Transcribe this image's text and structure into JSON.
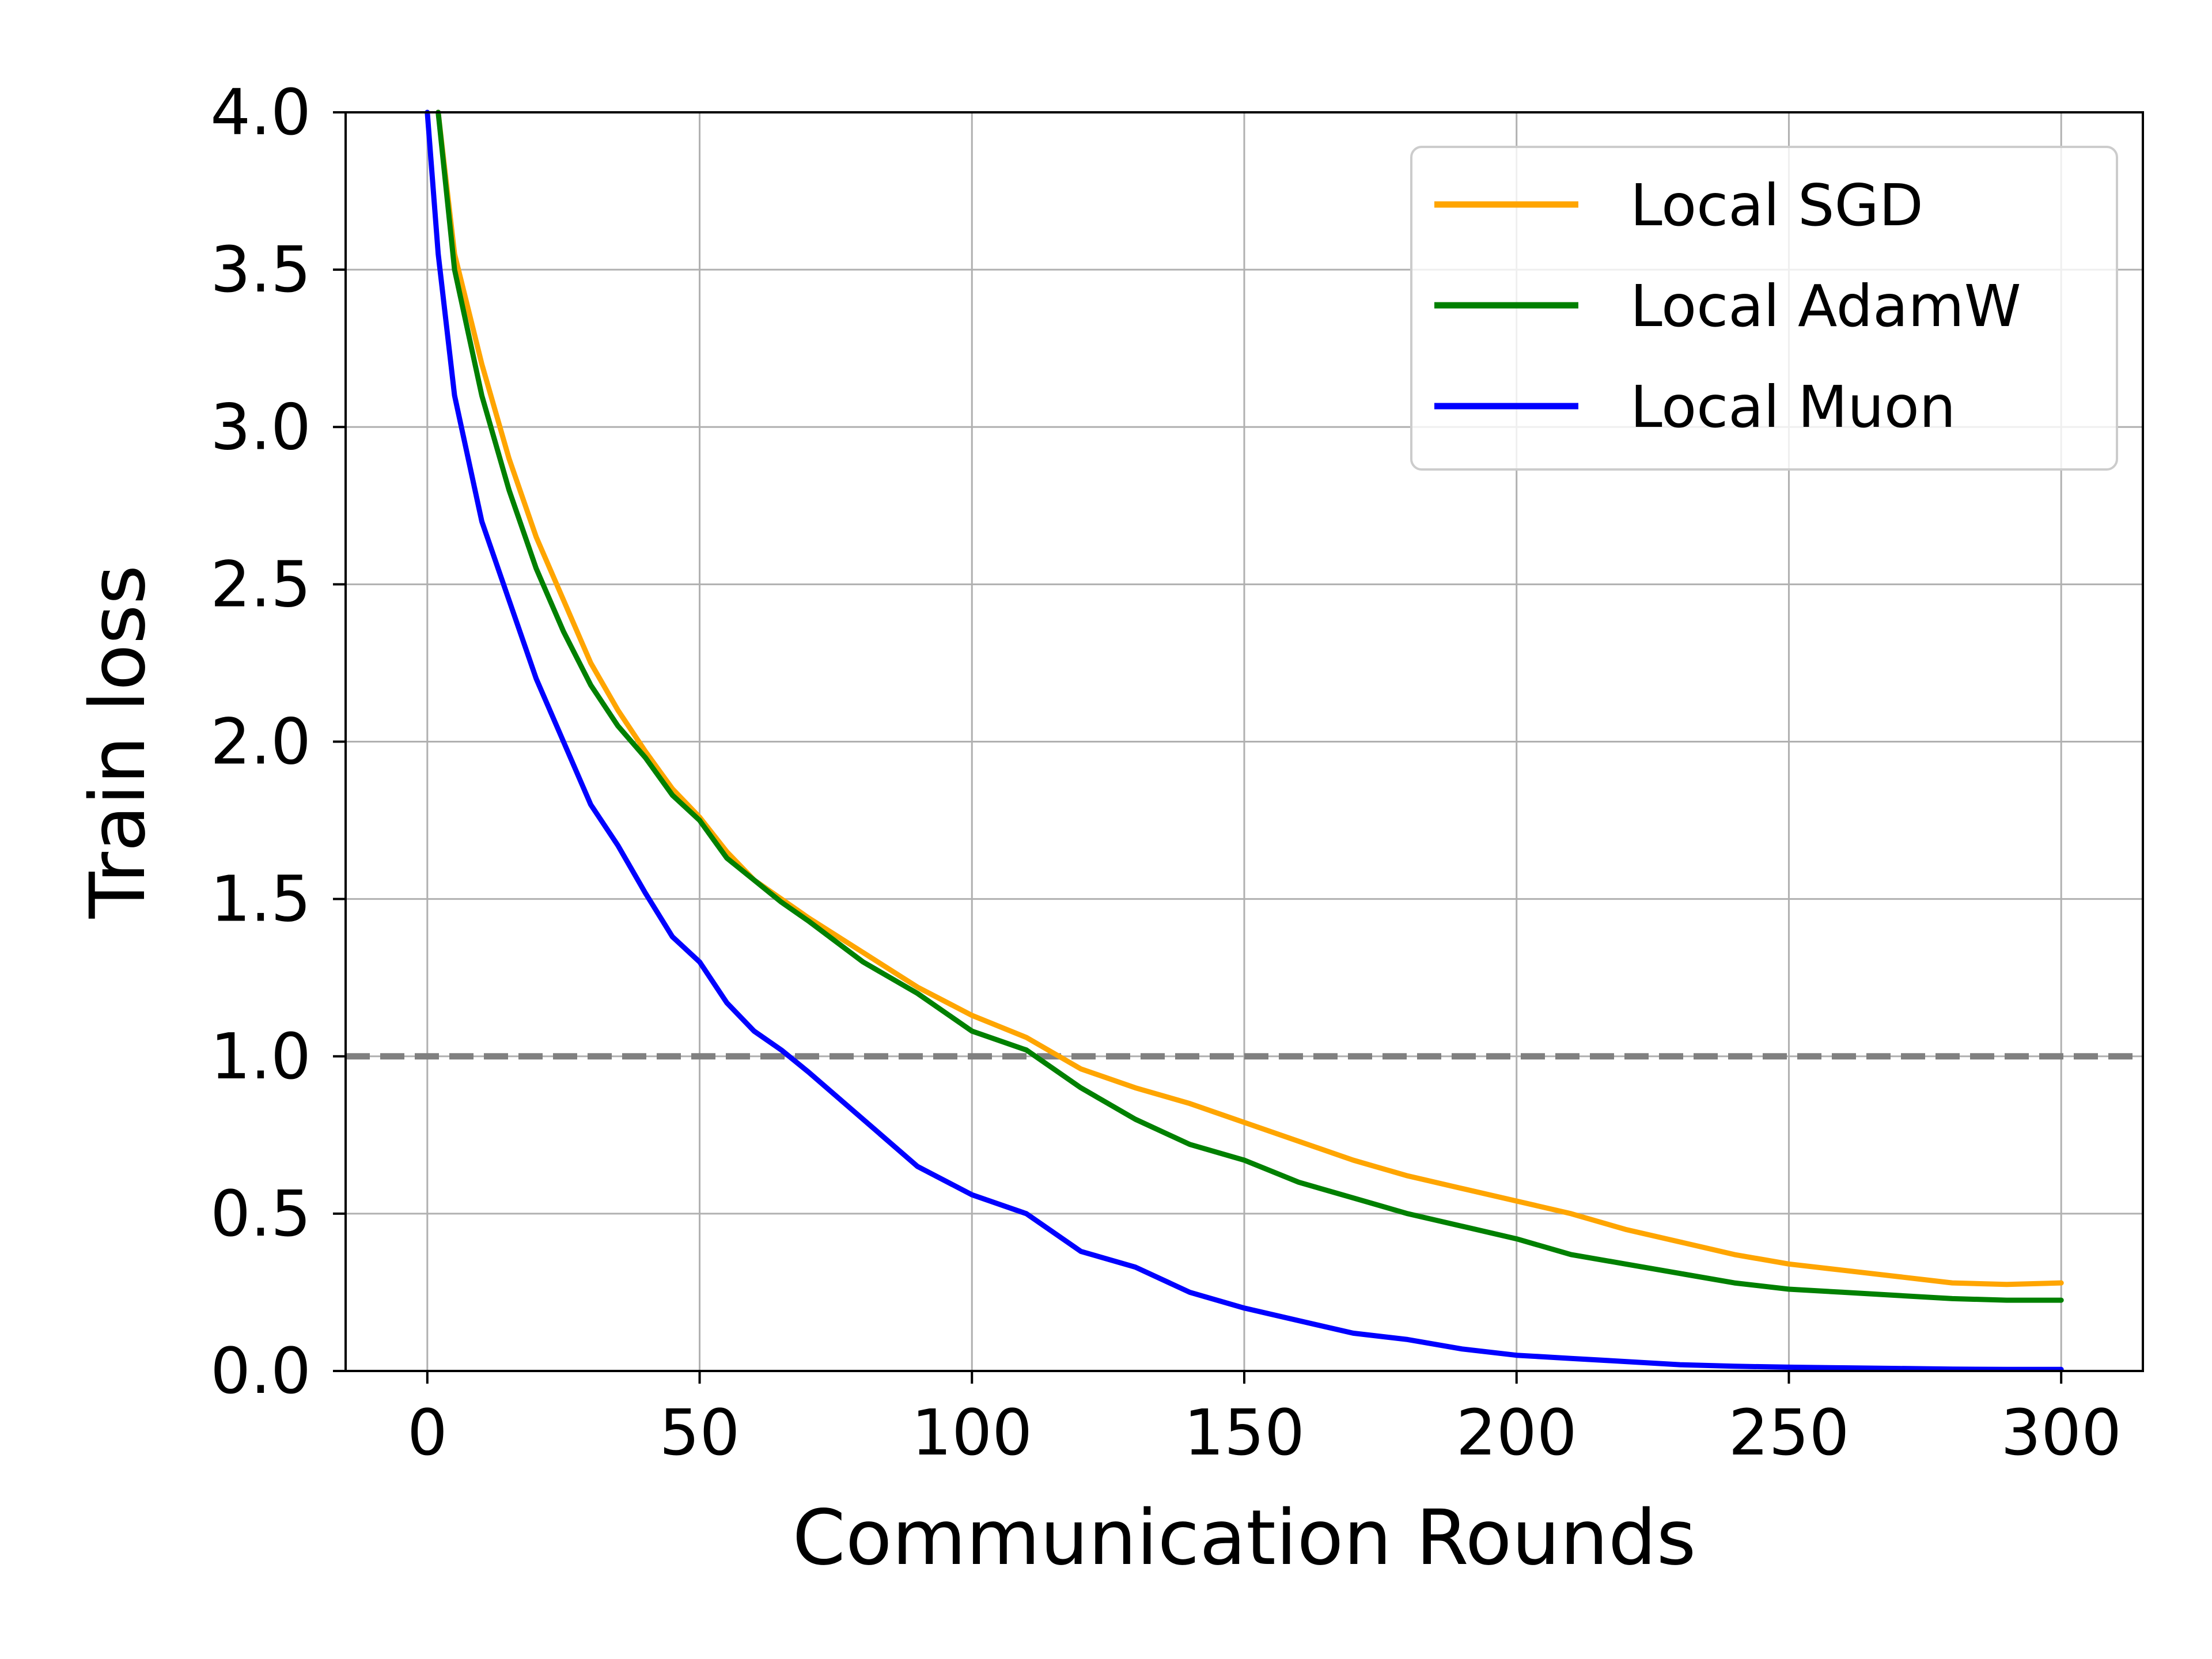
{
  "chart_data": {
    "type": "line",
    "title": "",
    "xlabel": "Communication Rounds",
    "ylabel": "Train loss",
    "xlim": [
      -15,
      315
    ],
    "ylim": [
      0,
      4
    ],
    "xticks": [
      0,
      50,
      100,
      150,
      200,
      250,
      300
    ],
    "xtick_labels": [
      "0",
      "50",
      "100",
      "150",
      "200",
      "250",
      "300"
    ],
    "yticks": [
      0,
      0.5,
      1,
      1.5,
      2,
      2.5,
      3,
      3.5,
      4
    ],
    "ytick_labels": [
      "0.0",
      "0.5",
      "1.0",
      "1.5",
      "2.0",
      "2.5",
      "3.0",
      "3.5",
      "4.0"
    ],
    "grid": true,
    "legend_position": "top-right",
    "reference_line": {
      "y": 1.0,
      "style": "dashed",
      "color": "#808080"
    },
    "series": [
      {
        "name": "Local SGD",
        "color": "#FFA500",
        "x": [
          2,
          5,
          10,
          15,
          20,
          25,
          30,
          35,
          40,
          45,
          50,
          55,
          60,
          65,
          70,
          80,
          90,
          100,
          110,
          120,
          130,
          140,
          150,
          160,
          170,
          180,
          190,
          200,
          210,
          220,
          230,
          240,
          250,
          260,
          270,
          280,
          290,
          300
        ],
        "y": [
          4.0,
          3.55,
          3.2,
          2.9,
          2.65,
          2.45,
          2.25,
          2.1,
          1.97,
          1.85,
          1.76,
          1.65,
          1.56,
          1.5,
          1.44,
          1.33,
          1.22,
          1.13,
          1.06,
          0.96,
          0.9,
          0.85,
          0.79,
          0.73,
          0.67,
          0.62,
          0.58,
          0.54,
          0.5,
          0.45,
          0.41,
          0.37,
          0.34,
          0.32,
          0.3,
          0.28,
          0.275,
          0.28
        ]
      },
      {
        "name": "Local AdamW",
        "color": "#008000",
        "x": [
          2,
          5,
          10,
          15,
          20,
          25,
          30,
          35,
          40,
          45,
          50,
          55,
          60,
          65,
          70,
          80,
          90,
          100,
          110,
          120,
          130,
          140,
          150,
          160,
          170,
          180,
          190,
          200,
          210,
          220,
          230,
          240,
          250,
          260,
          270,
          280,
          290,
          300
        ],
        "y": [
          4.0,
          3.5,
          3.1,
          2.8,
          2.55,
          2.35,
          2.18,
          2.05,
          1.95,
          1.83,
          1.75,
          1.63,
          1.56,
          1.49,
          1.43,
          1.3,
          1.2,
          1.08,
          1.02,
          0.9,
          0.8,
          0.72,
          0.67,
          0.6,
          0.55,
          0.5,
          0.46,
          0.42,
          0.37,
          0.34,
          0.31,
          0.28,
          0.26,
          0.25,
          0.24,
          0.23,
          0.225,
          0.225
        ]
      },
      {
        "name": "Local Muon",
        "color": "#0000FF",
        "x": [
          0,
          2,
          5,
          10,
          15,
          20,
          25,
          30,
          35,
          40,
          45,
          50,
          55,
          60,
          65,
          70,
          80,
          90,
          100,
          110,
          120,
          130,
          140,
          150,
          160,
          170,
          180,
          190,
          200,
          210,
          220,
          230,
          240,
          250,
          260,
          270,
          280,
          290,
          300
        ],
        "y": [
          4.0,
          3.55,
          3.1,
          2.7,
          2.45,
          2.2,
          2.0,
          1.8,
          1.67,
          1.52,
          1.38,
          1.3,
          1.17,
          1.08,
          1.02,
          0.95,
          0.8,
          0.65,
          0.56,
          0.5,
          0.38,
          0.33,
          0.25,
          0.2,
          0.16,
          0.12,
          0.1,
          0.07,
          0.05,
          0.04,
          0.03,
          0.02,
          0.015,
          0.012,
          0.01,
          0.008,
          0.006,
          0.005,
          0.005
        ]
      }
    ]
  }
}
